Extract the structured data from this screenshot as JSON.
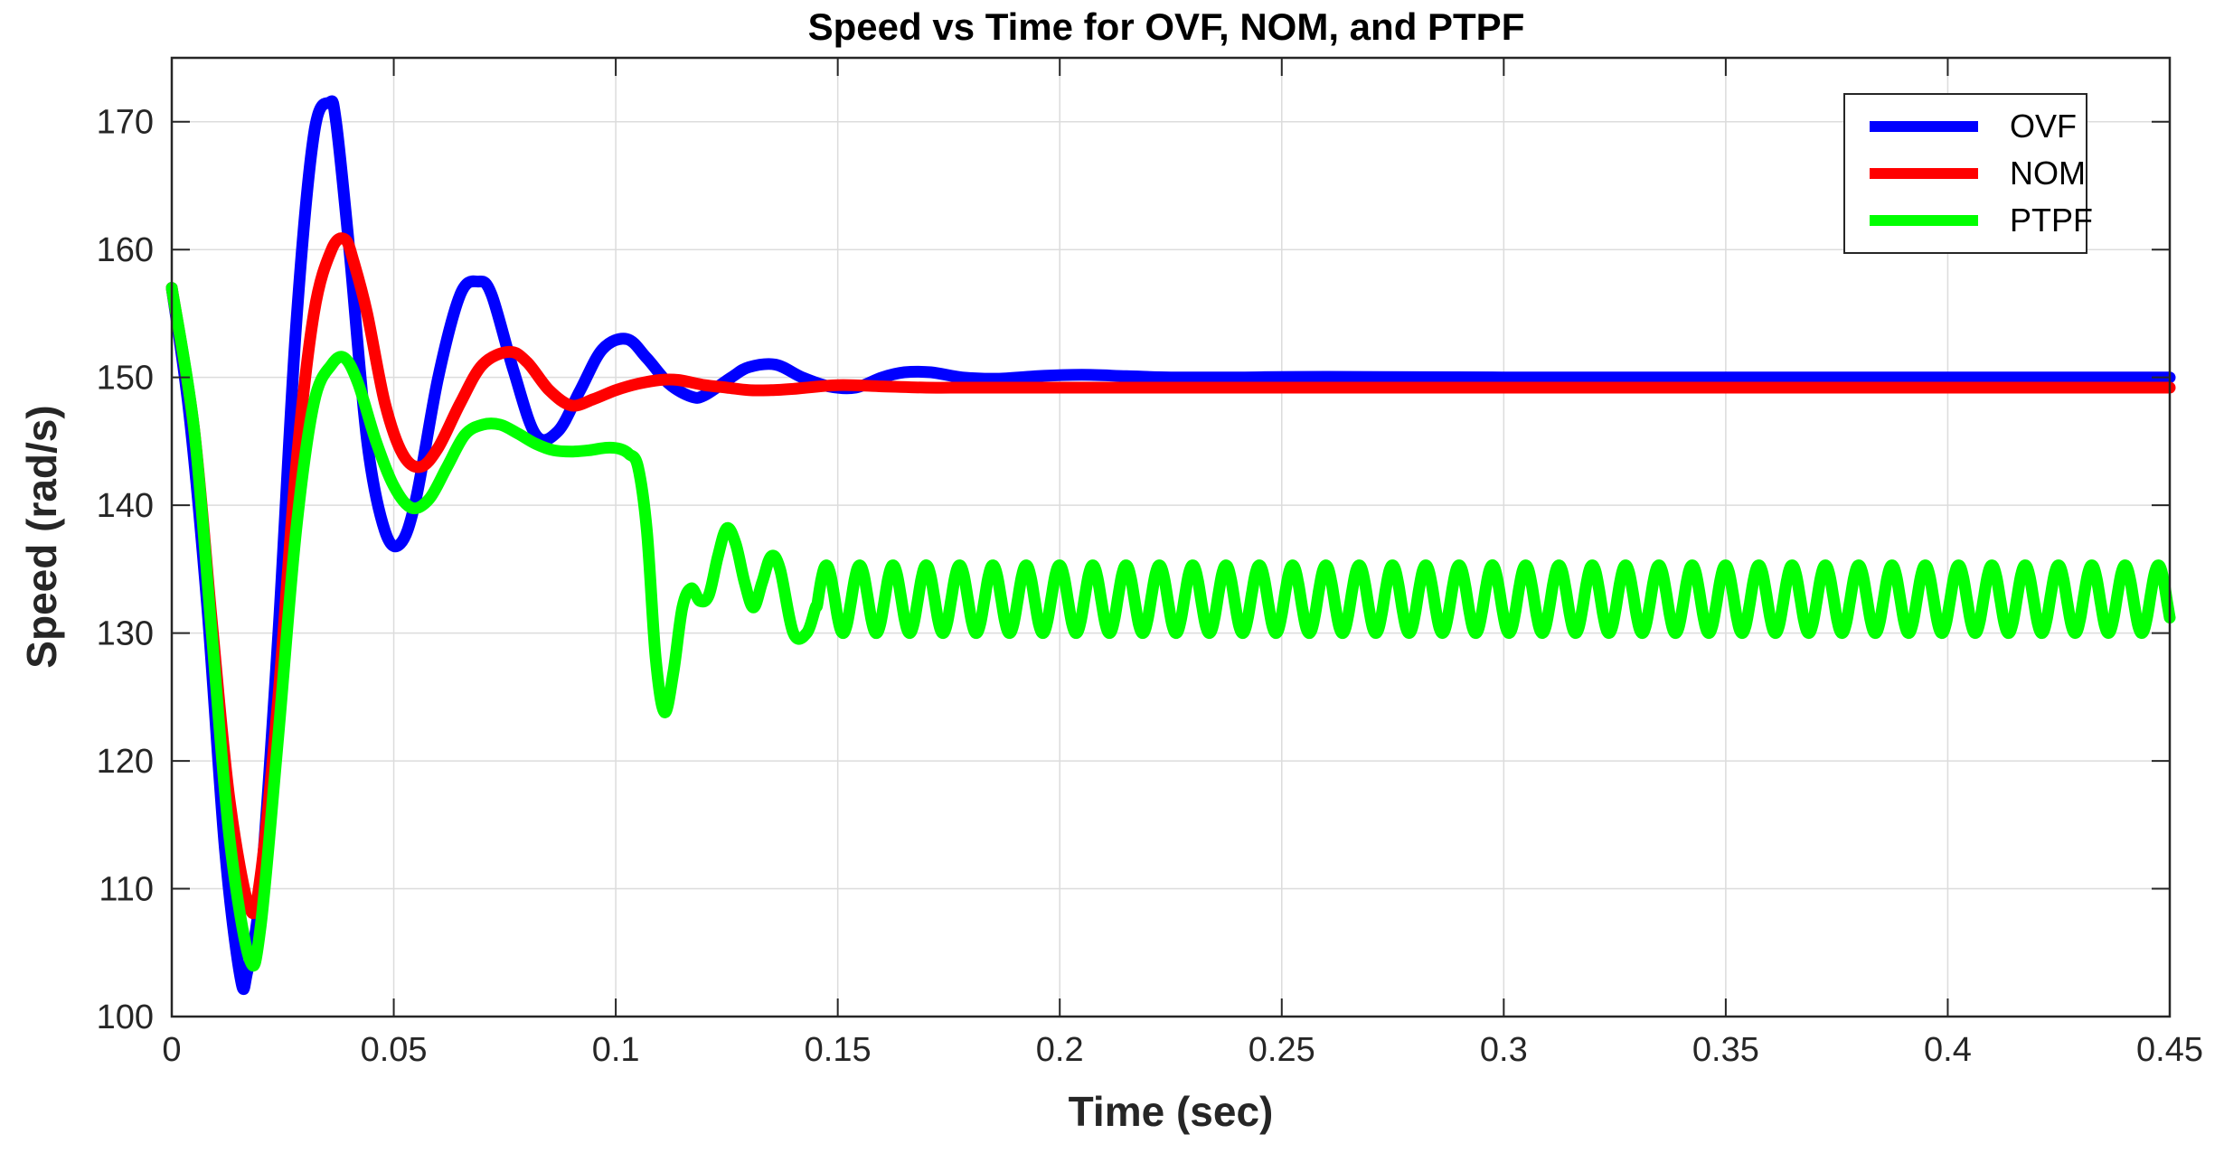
{
  "chart_data": {
    "type": "line",
    "title": "Speed vs Time for OVF, NOM, and PTPF",
    "xlabel": "Time (sec)",
    "ylabel": "Speed (rad/s)",
    "xlim": [
      0,
      0.45
    ],
    "ylim": [
      100,
      175
    ],
    "xticks": [
      0,
      0.05,
      0.1,
      0.15,
      0.2,
      0.25,
      0.3,
      0.35,
      0.4,
      0.45
    ],
    "xtick_labels": [
      "0",
      "0.05",
      "0.1",
      "0.15",
      "0.2",
      "0.25",
      "0.3",
      "0.35",
      "0.4",
      "0.45"
    ],
    "yticks": [
      100,
      110,
      120,
      130,
      140,
      150,
      160,
      170
    ],
    "ytick_labels": [
      "100",
      "110",
      "120",
      "130",
      "140",
      "150",
      "160",
      "170"
    ],
    "grid": true,
    "legend_position": "top-right",
    "series": [
      {
        "name": "OVF",
        "color": "#0000ff",
        "x": [
          0,
          0.004,
          0.008,
          0.012,
          0.0155,
          0.017,
          0.02,
          0.024,
          0.028,
          0.032,
          0.0355,
          0.037,
          0.04,
          0.044,
          0.048,
          0.0515,
          0.055,
          0.06,
          0.065,
          0.069,
          0.072,
          0.077,
          0.082,
          0.087,
          0.092,
          0.097,
          0.1025,
          0.107,
          0.112,
          0.117,
          0.12,
          0.126,
          0.13,
          0.136,
          0.142,
          0.148,
          0.154,
          0.16,
          0.165,
          0.171,
          0.178,
          0.186,
          0.195,
          0.205,
          0.215,
          0.225,
          0.24,
          0.26,
          0.3,
          0.35,
          0.4,
          0.45
        ],
        "values": [
          157,
          147,
          132,
          113,
          103,
          103.5,
          110,
          130,
          154,
          169,
          171.5,
          170,
          160,
          145,
          138,
          137,
          140.5,
          150,
          156.5,
          157.5,
          156.5,
          150.5,
          145.5,
          145.8,
          149,
          152.2,
          153,
          151.5,
          149.5,
          148.5,
          148.6,
          150,
          150.8,
          151,
          150,
          149.3,
          149.2,
          150,
          150.4,
          150.4,
          150,
          149.9,
          150.1,
          150.2,
          150.1,
          150,
          150,
          150.05,
          150,
          150,
          150,
          150
        ]
      },
      {
        "name": "NOM",
        "color": "#ff0000",
        "x": [
          0,
          0.005,
          0.009,
          0.013,
          0.0175,
          0.02,
          0.024,
          0.028,
          0.032,
          0.036,
          0.039,
          0.041,
          0.044,
          0.048,
          0.052,
          0.056,
          0.06,
          0.065,
          0.07,
          0.076,
          0.08,
          0.085,
          0.09,
          0.095,
          0.1,
          0.105,
          0.11,
          0.114,
          0.12,
          0.125,
          0.13,
          0.135,
          0.14,
          0.15,
          0.16,
          0.17,
          0.18,
          0.2,
          0.25,
          0.3,
          0.35,
          0.4,
          0.45
        ],
        "values": [
          157,
          146,
          131,
          117,
          108.5,
          111,
          125,
          143,
          155,
          160,
          160.8,
          159,
          155,
          148,
          144,
          143,
          144.5,
          148,
          151,
          152,
          151.2,
          149,
          147.8,
          148.3,
          149,
          149.5,
          149.8,
          149.8,
          149.4,
          149.2,
          149,
          149,
          149.1,
          149.4,
          149.3,
          149.2,
          149.2,
          149.2,
          149.2,
          149.2,
          149.2,
          149.2,
          149.2
        ]
      },
      {
        "name": "PTPF",
        "color": "#00ff00",
        "x": [
          0,
          0.005,
          0.009,
          0.013,
          0.0175,
          0.02,
          0.024,
          0.028,
          0.032,
          0.036,
          0.039,
          0.042,
          0.046,
          0.05,
          0.054,
          0.058,
          0.062,
          0.066,
          0.07,
          0.074,
          0.078,
          0.082,
          0.086,
          0.09,
          0.094,
          0.098,
          0.101,
          0.103,
          0.105,
          0.107,
          0.109,
          0.111,
          0.113,
          0.115,
          0.117,
          0.119,
          0.121,
          0.123,
          0.125,
          0.127,
          0.129,
          0.131,
          0.133,
          0.135,
          0.137,
          0.14,
          0.143,
          0.145
        ],
        "values": [
          157,
          146,
          130,
          114,
          104.5,
          107,
          122,
          138,
          148,
          151,
          151.5,
          149.5,
          145,
          141.5,
          139.8,
          140.5,
          143,
          145.5,
          146.3,
          146.3,
          145.6,
          144.8,
          144.3,
          144.2,
          144.3,
          144.5,
          144.4,
          144,
          143,
          138,
          128,
          123.8,
          127,
          132,
          133.5,
          132.5,
          133,
          136,
          138.2,
          137,
          134,
          132,
          134,
          136,
          135,
          130,
          130,
          132
        ]
      }
    ],
    "oscillation": {
      "series": "PTPF",
      "start_time": 0.145,
      "end_time": 0.45,
      "period": 0.0075,
      "min": 130,
      "max": 135.3
    }
  }
}
